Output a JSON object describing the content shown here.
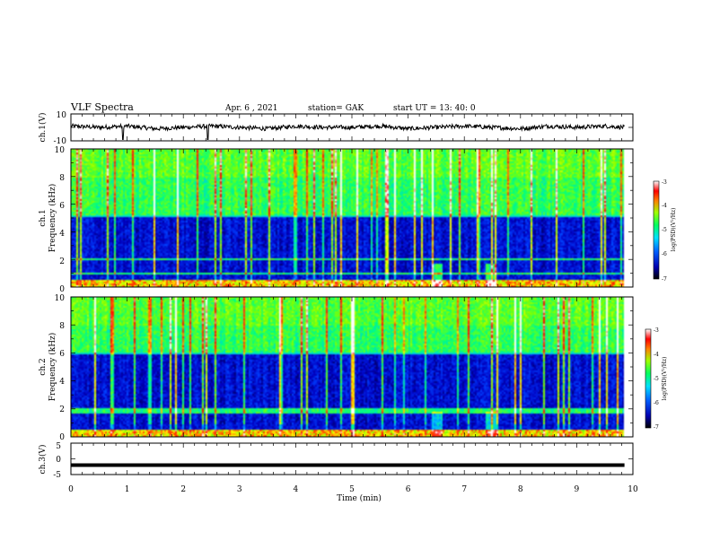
{
  "header": {
    "title": "VLF Spectra",
    "date": "Apr. 6 , 2021",
    "station": "station= GAK",
    "start_time": "start UT = 13: 40: 0"
  },
  "chart_data": [
    {
      "type": "line",
      "id": "ch1_voltage",
      "ylabel": "ch.1(V)",
      "ylim": [
        -10,
        10
      ],
      "yticks": [
        "10",
        "-10"
      ],
      "x": [
        0,
        0.5,
        1,
        1.5,
        2,
        2.5,
        3,
        3.5,
        4,
        4.5,
        5,
        5.5,
        6,
        6.5,
        7,
        7.5,
        8,
        8.5,
        9,
        9.5,
        9.85
      ],
      "values": [
        1,
        0,
        1,
        -1,
        0,
        1,
        0,
        -1,
        1,
        0,
        0,
        1,
        -1,
        0,
        1,
        0,
        -1,
        1,
        0,
        1,
        0
      ],
      "spikes": [
        {
          "x": 0.92,
          "y": -9
        },
        {
          "x": 2.43,
          "y": -9
        }
      ]
    },
    {
      "type": "heatmap",
      "id": "ch1_spectrogram",
      "ylabel": "ch.1",
      "ylabel2": "Frequency (kHz)",
      "ylim": [
        0,
        10
      ],
      "yticks": [
        "0",
        "2",
        "4",
        "6",
        "8",
        "10"
      ],
      "features_khz": [
        0.5,
        1.0,
        2.1,
        5.2
      ],
      "colorbar": {
        "label": "log(PSD)(V²/Hz)",
        "ticks": [
          "-3",
          "-4",
          "-5",
          "-6",
          "-7"
        ],
        "range": [
          -7,
          -3
        ]
      }
    },
    {
      "type": "heatmap",
      "id": "ch2_spectrogram",
      "ylabel": "ch.2",
      "ylabel2": "Frequency (kHz)",
      "ylim": [
        0,
        10
      ],
      "yticks": [
        "0",
        "2",
        "4",
        "6",
        "8",
        "10"
      ],
      "features_khz": [
        0.5,
        1.8,
        2.0,
        6.1
      ],
      "colorbar": {
        "label": "log(PSD)(V²/Hz)",
        "ticks": [
          "-3",
          "-4",
          "-5",
          "-6",
          "-7"
        ],
        "range": [
          -7,
          -3
        ]
      }
    },
    {
      "type": "line",
      "id": "ch3_voltage",
      "ylabel": "ch.3(V)",
      "ylim": [
        -5,
        5
      ],
      "yticks": [
        "5",
        "0",
        "-5"
      ],
      "x": [
        0,
        9.85
      ],
      "values": [
        -2,
        -2
      ]
    }
  ],
  "xaxis": {
    "label": "Time (min)",
    "xlim": [
      0,
      10
    ],
    "ticks": [
      "0",
      "1",
      "2",
      "3",
      "4",
      "5",
      "6",
      "7",
      "8",
      "9",
      "10"
    ]
  },
  "colors": {
    "line": "#000000",
    "colormap": [
      "#000040",
      "#0000c0",
      "#0040ff",
      "#00c0ff",
      "#00ff80",
      "#80ff00",
      "#ffff00",
      "#ff8000",
      "#ff0000",
      "#ffffff"
    ]
  }
}
